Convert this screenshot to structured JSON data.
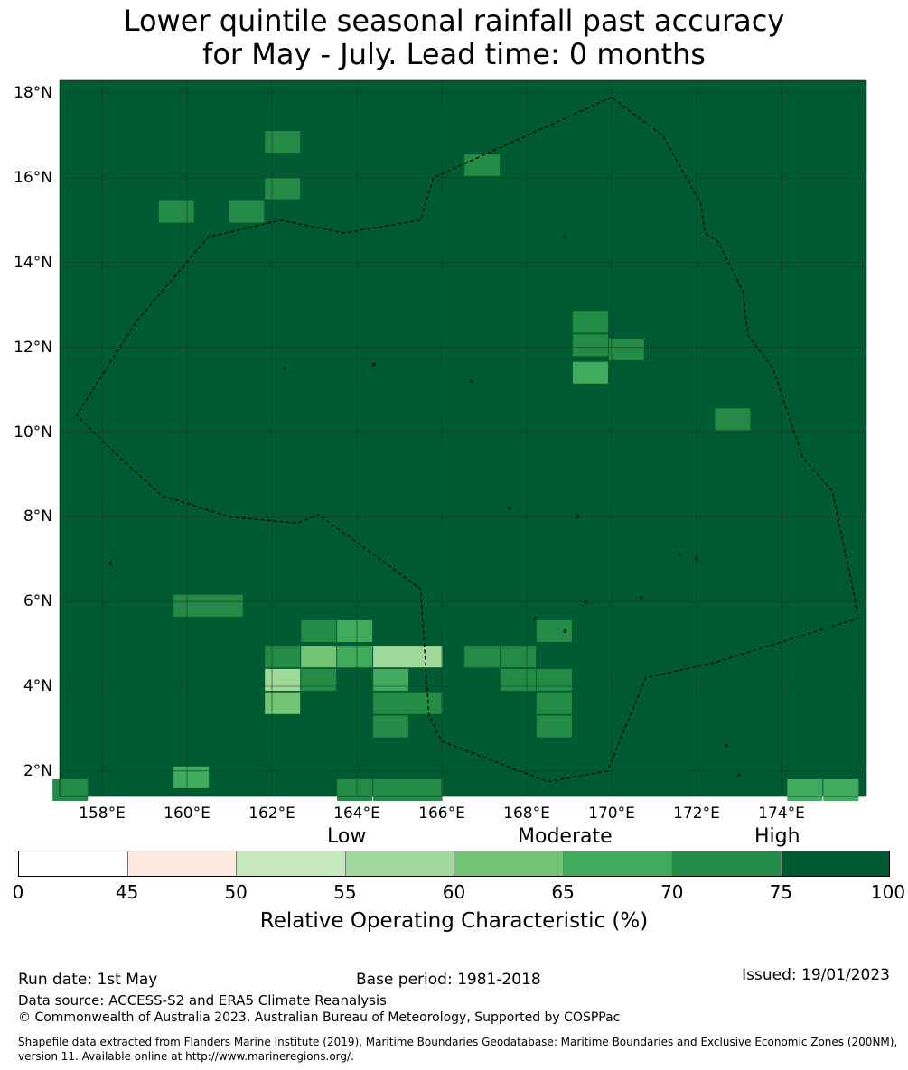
{
  "title_line1": "Lower quintile seasonal rainfall past accuracy",
  "title_line2": "for May - July. Lead time: 0 months",
  "map": {
    "lon_range": [
      157,
      176
    ],
    "lat_range": [
      1.4,
      18.3
    ],
    "background_color": "#005a32",
    "lat_ticks": [
      {
        "value": 18,
        "label": "18°N"
      },
      {
        "value": 16,
        "label": "16°N"
      },
      {
        "value": 14,
        "label": "14°N"
      },
      {
        "value": 12,
        "label": "12°N"
      },
      {
        "value": 10,
        "label": "10°N"
      },
      {
        "value": 8,
        "label": "8°N"
      },
      {
        "value": 6,
        "label": "6°N"
      },
      {
        "value": 4,
        "label": "4°N"
      },
      {
        "value": 2,
        "label": "2°N"
      }
    ],
    "lon_ticks": [
      {
        "value": 158,
        "label": "158°E"
      },
      {
        "value": 160,
        "label": "160°E"
      },
      {
        "value": 162,
        "label": "162°E"
      },
      {
        "value": 164,
        "label": "164°E"
      },
      {
        "value": 166,
        "label": "166°E"
      },
      {
        "value": 168,
        "label": "168°E"
      },
      {
        "value": 170,
        "label": "170°E"
      },
      {
        "value": 172,
        "label": "172°E"
      },
      {
        "value": 174,
        "label": "174°E"
      }
    ],
    "cell_size_deg": 0.83,
    "cells": [
      {
        "lon": 162.25,
        "lat": 16.85,
        "cls": 6
      },
      {
        "lon": 162.25,
        "lat": 15.75,
        "cls": 6
      },
      {
        "lon": 159.75,
        "lat": 15.2,
        "cls": 6
      },
      {
        "lon": 161.4,
        "lat": 15.2,
        "cls": 6
      },
      {
        "lon": 166.95,
        "lat": 16.3,
        "cls": 6
      },
      {
        "lon": 169.5,
        "lat": 12.6,
        "cls": 6
      },
      {
        "lon": 169.5,
        "lat": 12.05,
        "cls": 6
      },
      {
        "lon": 170.35,
        "lat": 11.95,
        "cls": 6
      },
      {
        "lon": 169.5,
        "lat": 11.4,
        "cls": 5
      },
      {
        "lon": 172.85,
        "lat": 10.3,
        "cls": 6
      },
      {
        "lon": 160.1,
        "lat": 5.9,
        "cls": 6
      },
      {
        "lon": 160.9,
        "lat": 5.9,
        "cls": 6
      },
      {
        "lon": 163.1,
        "lat": 5.3,
        "cls": 6
      },
      {
        "lon": 163.95,
        "lat": 5.3,
        "cls": 5
      },
      {
        "lon": 163.95,
        "lat": 4.7,
        "cls": 5
      },
      {
        "lon": 162.25,
        "lat": 4.7,
        "cls": 6
      },
      {
        "lon": 163.1,
        "lat": 4.7,
        "cls": 4
      },
      {
        "lon": 164.8,
        "lat": 4.7,
        "cls": 3
      },
      {
        "lon": 165.6,
        "lat": 4.7,
        "cls": 3
      },
      {
        "lon": 162.25,
        "lat": 4.15,
        "cls": 3
      },
      {
        "lon": 163.1,
        "lat": 4.15,
        "cls": 6
      },
      {
        "lon": 164.8,
        "lat": 4.15,
        "cls": 5
      },
      {
        "lon": 162.25,
        "lat": 3.6,
        "cls": 4
      },
      {
        "lon": 164.8,
        "lat": 3.6,
        "cls": 6
      },
      {
        "lon": 165.6,
        "lat": 3.6,
        "cls": 6
      },
      {
        "lon": 164.8,
        "lat": 3.05,
        "cls": 6
      },
      {
        "lon": 166.95,
        "lat": 4.7,
        "cls": 6
      },
      {
        "lon": 167.8,
        "lat": 4.7,
        "cls": 6
      },
      {
        "lon": 167.8,
        "lat": 4.15,
        "cls": 6
      },
      {
        "lon": 168.65,
        "lat": 4.15,
        "cls": 6
      },
      {
        "lon": 168.65,
        "lat": 5.3,
        "cls": 6
      },
      {
        "lon": 168.65,
        "lat": 3.6,
        "cls": 6
      },
      {
        "lon": 168.65,
        "lat": 3.05,
        "cls": 6
      },
      {
        "lon": 160.1,
        "lat": 1.85,
        "cls": 5
      },
      {
        "lon": 157.25,
        "lat": 1.55,
        "cls": 6
      },
      {
        "lon": 163.95,
        "lat": 1.55,
        "cls": 6
      },
      {
        "lon": 164.8,
        "lat": 1.55,
        "cls": 6
      },
      {
        "lon": 165.6,
        "lat": 1.55,
        "cls": 6
      },
      {
        "lon": 174.55,
        "lat": 1.55,
        "cls": 5
      },
      {
        "lon": 175.4,
        "lat": 1.55,
        "cls": 5
      }
    ],
    "eez_boundary": [
      [
        170.0,
        17.9
      ],
      [
        165.8,
        16.0
      ],
      [
        165.5,
        15.0
      ],
      [
        163.7,
        14.7
      ],
      [
        162.2,
        15.0
      ],
      [
        160.5,
        14.6
      ],
      [
        158.8,
        12.6
      ],
      [
        157.4,
        10.4
      ],
      [
        158.2,
        9.6
      ],
      [
        159.4,
        8.5
      ],
      [
        161.0,
        8.0
      ],
      [
        162.6,
        7.85
      ],
      [
        163.1,
        8.05
      ],
      [
        165.5,
        6.3
      ],
      [
        165.7,
        3.3
      ],
      [
        166.0,
        2.7
      ],
      [
        168.5,
        1.75
      ],
      [
        169.9,
        2.0
      ],
      [
        170.8,
        4.2
      ],
      [
        172.4,
        4.55
      ],
      [
        175.8,
        5.6
      ],
      [
        175.7,
        6.2
      ],
      [
        175.2,
        8.6
      ],
      [
        174.5,
        9.4
      ],
      [
        173.8,
        11.5
      ],
      [
        173.2,
        12.3
      ],
      [
        173.1,
        13.3
      ],
      [
        172.5,
        14.5
      ],
      [
        172.2,
        14.7
      ],
      [
        172.1,
        15.4
      ],
      [
        171.2,
        17.0
      ],
      [
        170.0,
        17.9
      ]
    ],
    "islands": [
      [
        158.2,
        6.9
      ],
      [
        168.9,
        5.3
      ],
      [
        171.6,
        7.1
      ],
      [
        172.0,
        7.0
      ],
      [
        173.0,
        1.9
      ],
      [
        172.7,
        2.6
      ],
      [
        166.7,
        11.2
      ],
      [
        168.9,
        14.6
      ],
      [
        162.3,
        11.5
      ],
      [
        164.4,
        11.6
      ],
      [
        167.6,
        8.2
      ],
      [
        169.2,
        8.0
      ],
      [
        170.7,
        6.1
      ],
      [
        169.4,
        6.0
      ],
      [
        168.2,
        5.6
      ]
    ]
  },
  "colorbar": {
    "colors": [
      "#ffffff",
      "#ffeae0",
      "#c7e9c0",
      "#a1d99b",
      "#74c476",
      "#41ab5d",
      "#238b45",
      "#005a32"
    ],
    "ticks": [
      "0",
      "45",
      "50",
      "55",
      "60",
      "65",
      "70",
      "75",
      "100"
    ],
    "categories": [
      "Low",
      "Moderate",
      "High"
    ],
    "label": "Relative Operating Characteristic (%)"
  },
  "footer": {
    "run_date": "Run date: 1st May",
    "base_period": "Base period: 1981-2018",
    "issued": "Issued: 19/01/2023",
    "data_source": "Data source: ACCESS-S2 and ERA5 Climate Reanalysis",
    "copyright": "© Commonwealth of Australia 2023, Australian Bureau of Meteorology, Supported by COSPPac",
    "shapefile": "Shapefile data extracted from Flanders Marine Institute (2019), Maritime Boundaries Geodatabase: Maritime Boundaries and Exclusive Economic Zones (200NM), version 11. Available online at http://www.marineregions.org/."
  }
}
